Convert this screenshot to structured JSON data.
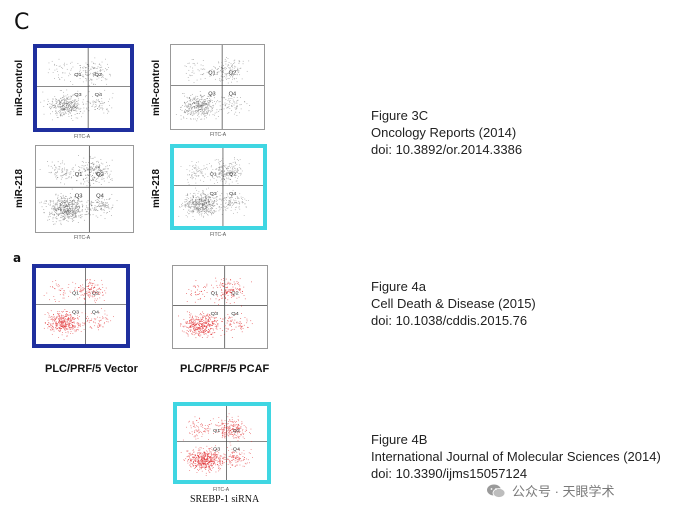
{
  "panel_c_letter": "C",
  "panel_a_letter": "a",
  "plots": {
    "miR_control_label": "miR-control",
    "miR_218_label": "miR-218",
    "x_axis": "FITC-A",
    "y_axis": "PI-A",
    "quadrants": [
      "Q1",
      "Q2",
      "Q3",
      "Q4"
    ],
    "vector_label": "PLC/PRF/5 Vector",
    "pcaf_label": "PLC/PRF/5 PCAF",
    "srebp_label": "SREBP-1 siRNA"
  },
  "references": [
    {
      "figure": "Figure 3C",
      "journal": "Oncology Reports (2014)",
      "doi": "doi: 10.3892/or.2014.3386"
    },
    {
      "figure": "Figure 4a",
      "journal": "Cell Death & Disease (2015)",
      "doi": "doi: 10.1038/cddis.2015.76"
    },
    {
      "figure": "Figure 4B",
      "journal": "International Journal of Molecular Sciences (2014)",
      "doi": "doi: 10.3390/ijms15057124"
    }
  ],
  "watermark": {
    "text": "公众号 · 天眼学术",
    "icon": "wechat-icon"
  },
  "colors": {
    "navy_highlight": "#1f2f9e",
    "cyan_highlight": "#3fd6e2",
    "red_dots": "#e0282a",
    "gray_dots": "#555555"
  }
}
